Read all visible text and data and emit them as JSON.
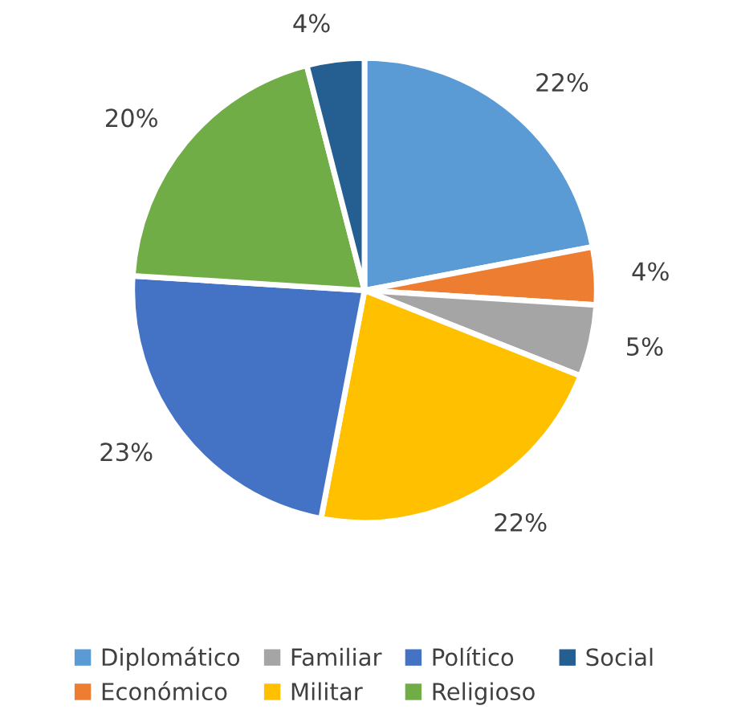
{
  "chart_data": {
    "type": "pie",
    "categories": [
      "Diplomático",
      "Económico",
      "Familiar",
      "Militar",
      "Político",
      "Religioso",
      "Social"
    ],
    "values": [
      22,
      4,
      5,
      22,
      23,
      20,
      4
    ],
    "value_labels": [
      "22%",
      "4%",
      "5%",
      "22%",
      "23%",
      "20%",
      "4%"
    ],
    "colors": [
      "#5b9bd5",
      "#ed7d31",
      "#a5a5a5",
      "#ffc000",
      "#4472c4",
      "#70ad47",
      "#255e91"
    ],
    "legend": "bottom"
  }
}
